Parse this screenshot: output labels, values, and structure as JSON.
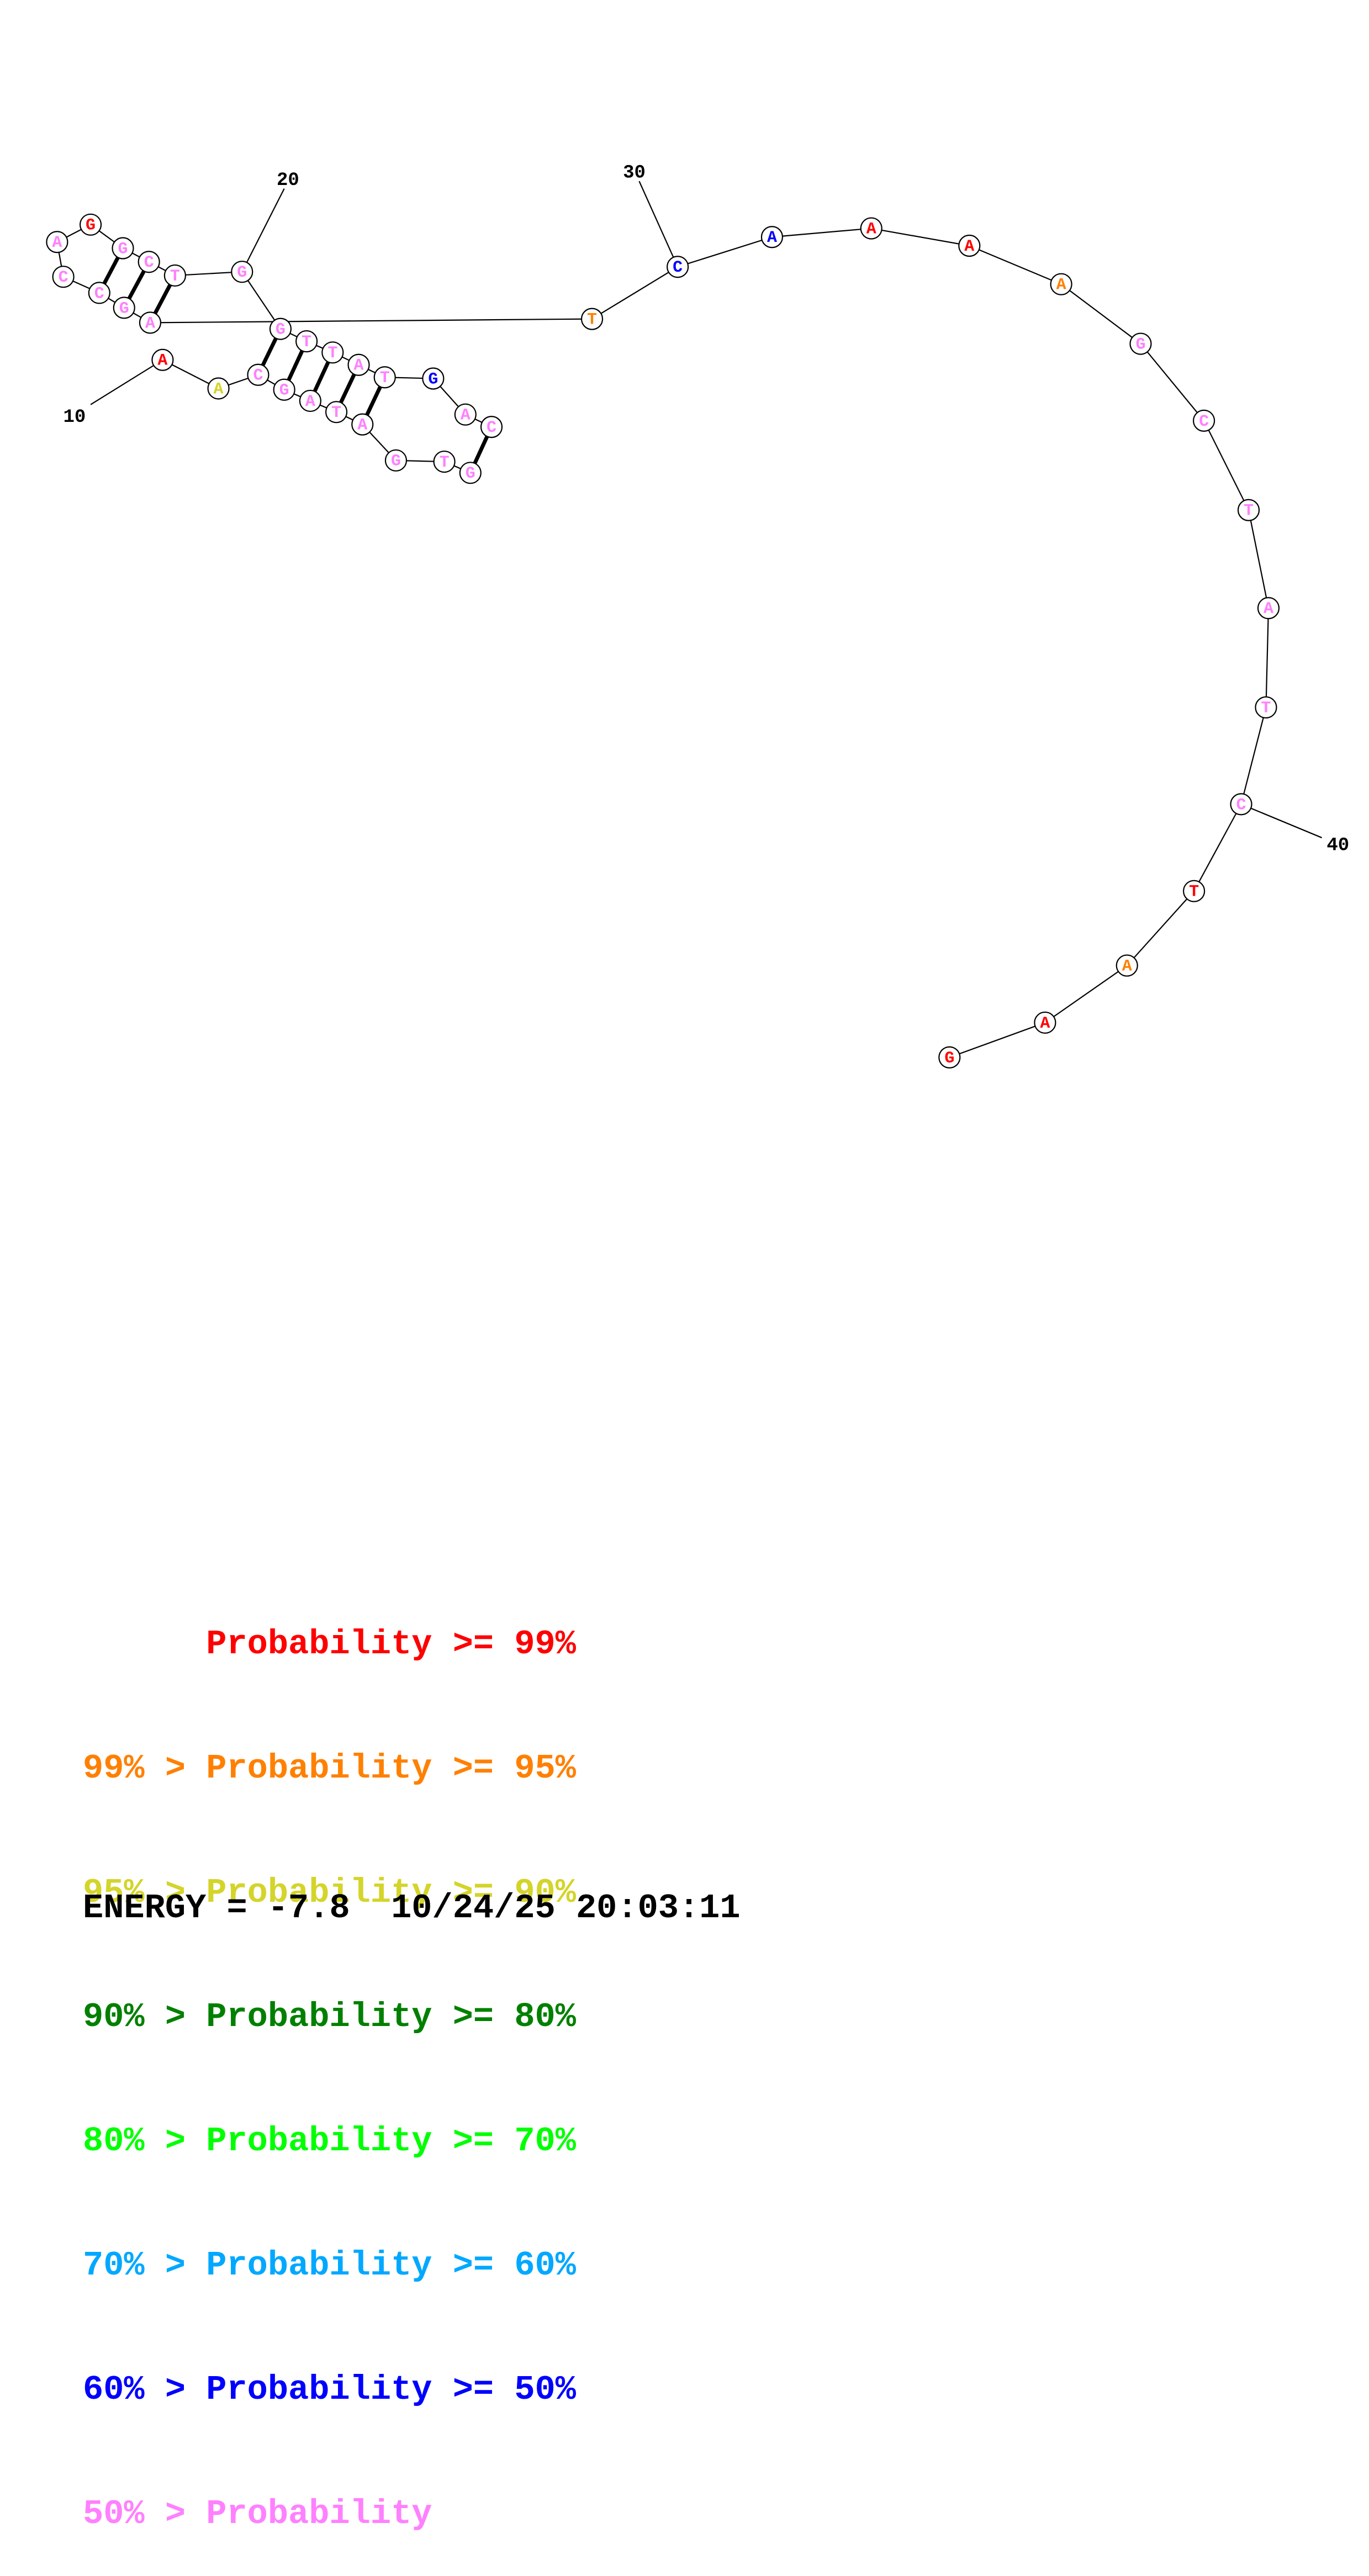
{
  "colors": {
    "red": "#ff0000",
    "orange": "#ff8000",
    "yellow": "#d4d42a",
    "darkgreen": "#008000",
    "green": "#00ff00",
    "cyan": "#00a8ff",
    "blue": "#0000ff",
    "pink": "#ff80ff"
  },
  "nucleotides": [
    {
      "base": "A",
      "color": "red"
    },
    {
      "base": "A",
      "color": "yellow"
    },
    {
      "base": "C",
      "color": "pink"
    },
    {
      "base": "G",
      "color": "pink"
    },
    {
      "base": "A",
      "color": "pink"
    },
    {
      "base": "T",
      "color": "pink"
    },
    {
      "base": "A",
      "color": "pink"
    },
    {
      "base": "G",
      "color": "pink"
    },
    {
      "base": "T",
      "color": "pink"
    },
    {
      "base": "G",
      "color": "pink"
    },
    {
      "base": "C",
      "color": "pink"
    },
    {
      "base": "A",
      "color": "pink"
    },
    {
      "base": "G",
      "color": "blue"
    },
    {
      "base": "T",
      "color": "pink"
    },
    {
      "base": "A",
      "color": "pink"
    },
    {
      "base": "T",
      "color": "pink"
    },
    {
      "base": "T",
      "color": "pink"
    },
    {
      "base": "G",
      "color": "pink"
    },
    {
      "base": "G",
      "color": "pink"
    },
    {
      "base": "T",
      "color": "pink"
    },
    {
      "base": "C",
      "color": "pink"
    },
    {
      "base": "G",
      "color": "pink"
    },
    {
      "base": "G",
      "color": "red"
    },
    {
      "base": "A",
      "color": "pink"
    },
    {
      "base": "C",
      "color": "pink"
    },
    {
      "base": "C",
      "color": "pink"
    },
    {
      "base": "G",
      "color": "pink"
    },
    {
      "base": "A",
      "color": "pink"
    },
    {
      "base": "T",
      "color": "orange"
    },
    {
      "base": "C",
      "color": "blue"
    },
    {
      "base": "A",
      "color": "blue"
    },
    {
      "base": "A",
      "color": "red"
    },
    {
      "base": "A",
      "color": "red"
    },
    {
      "base": "A",
      "color": "orange"
    },
    {
      "base": "G",
      "color": "pink"
    },
    {
      "base": "C",
      "color": "pink"
    },
    {
      "base": "T",
      "color": "pink"
    },
    {
      "base": "A",
      "color": "pink"
    },
    {
      "base": "T",
      "color": "pink"
    },
    {
      "base": "C",
      "color": "pink"
    },
    {
      "base": "T",
      "color": "red"
    },
    {
      "base": "A",
      "color": "orange"
    },
    {
      "base": "A",
      "color": "red"
    },
    {
      "base": "G",
      "color": "red"
    }
  ],
  "position_labels": [
    {
      "text": "10"
    },
    {
      "text": "20"
    },
    {
      "text": "30"
    },
    {
      "text": "40"
    }
  ],
  "legend": [
    {
      "text": "      Probability >= 99%",
      "color": "red"
    },
    {
      "text": "99% > Probability >= 95%",
      "color": "orange"
    },
    {
      "text": "95% > Probability >= 90%",
      "color": "yellow"
    },
    {
      "text": "90% > Probability >= 80%",
      "color": "darkgreen"
    },
    {
      "text": "80% > Probability >= 70%",
      "color": "green"
    },
    {
      "text": "70% > Probability >= 60%",
      "color": "cyan"
    },
    {
      "text": "60% > Probability >= 50%",
      "color": "blue"
    },
    {
      "text": "50% > Probability",
      "color": "pink"
    }
  ],
  "footer": {
    "energy": "ENERGY = -7.8  10/24/25 20:03:11"
  }
}
